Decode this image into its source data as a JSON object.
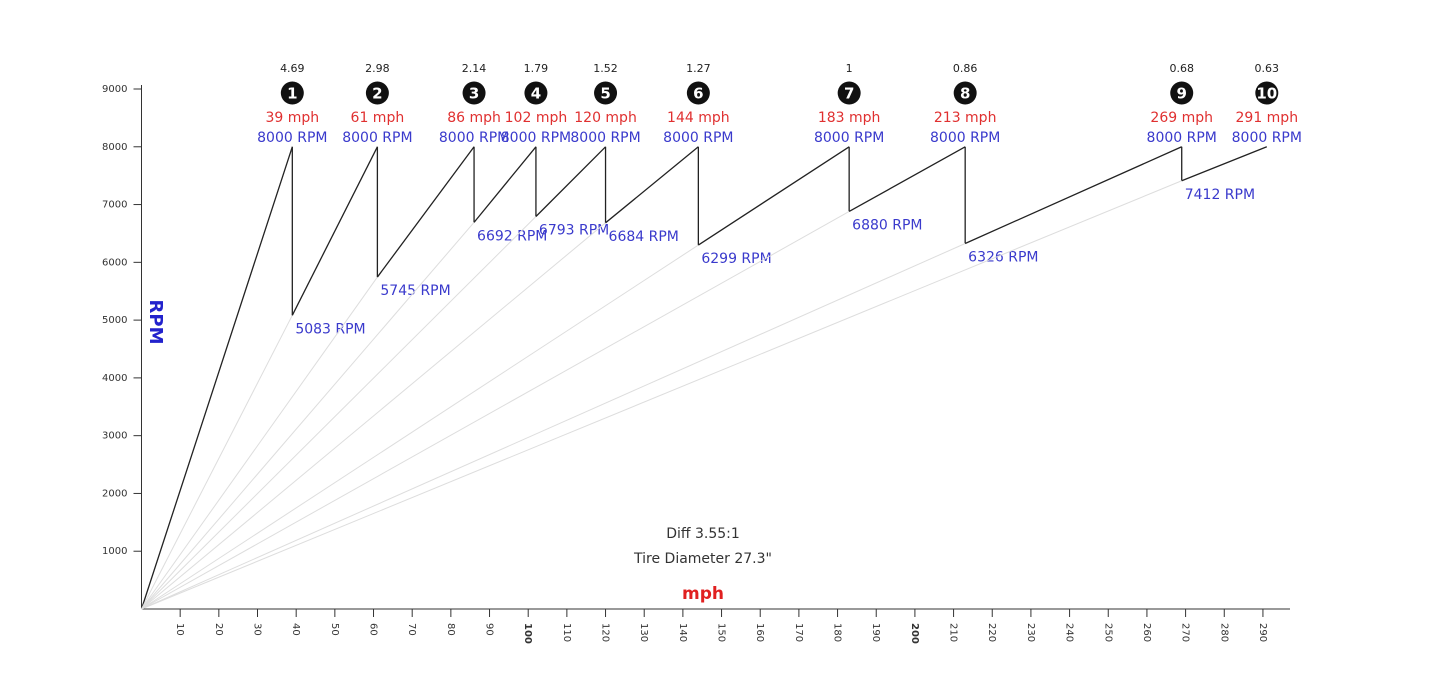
{
  "chart_data": {
    "type": "gearing",
    "y_label": "RPM",
    "x_label": "mph",
    "xlim": [
      0,
      297
    ],
    "ylim": [
      0,
      9000
    ],
    "xticks": [
      10,
      20,
      30,
      40,
      50,
      60,
      70,
      80,
      90,
      100,
      110,
      120,
      130,
      140,
      150,
      160,
      170,
      180,
      190,
      200,
      210,
      220,
      230,
      240,
      250,
      260,
      270,
      280,
      290
    ],
    "yticks": [
      1000,
      2000,
      3000,
      4000,
      5000,
      6000,
      7000,
      8000,
      9000
    ],
    "annotations": [
      "Diff 3.55:1",
      "Tire Diameter 27.3\""
    ],
    "line_color": "#222222",
    "guide_color": "#dddddd",
    "mph_color": "#e03030",
    "rpm_color": "#3a3acc",
    "gears": [
      {
        "gear": "1",
        "ratio": 4.69,
        "shift_mph": 39,
        "shift_mph_label": "39 mph",
        "shift_rpm": 8000,
        "shift_rpm_label": "8000 RPM",
        "drop_rpm": 5083,
        "drop_rpm_label": "5083 RPM"
      },
      {
        "gear": "2",
        "ratio": 2.98,
        "shift_mph": 61,
        "shift_mph_label": "61 mph",
        "shift_rpm": 8000,
        "shift_rpm_label": "8000 RPM",
        "drop_rpm": 5745,
        "drop_rpm_label": "5745 RPM"
      },
      {
        "gear": "3",
        "ratio": 2.14,
        "shift_mph": 86,
        "shift_mph_label": "86 mph",
        "shift_rpm": 8000,
        "shift_rpm_label": "8000 RPM",
        "drop_rpm": 6692,
        "drop_rpm_label": "6692 RPM"
      },
      {
        "gear": "4",
        "ratio": 1.79,
        "shift_mph": 102,
        "shift_mph_label": "102 mph",
        "shift_rpm": 8000,
        "shift_rpm_label": "8000 RPM",
        "drop_rpm": 6793,
        "drop_rpm_label": "6793 RPM"
      },
      {
        "gear": "5",
        "ratio": 1.52,
        "shift_mph": 120,
        "shift_mph_label": "120 mph",
        "shift_rpm": 8000,
        "shift_rpm_label": "8000 RPM",
        "drop_rpm": 6684,
        "drop_rpm_label": "6684 RPM"
      },
      {
        "gear": "6",
        "ratio": 1.27,
        "shift_mph": 144,
        "shift_mph_label": "144 mph",
        "shift_rpm": 8000,
        "shift_rpm_label": "8000 RPM",
        "drop_rpm": 6299,
        "drop_rpm_label": "6299 RPM"
      },
      {
        "gear": "7",
        "ratio": 1,
        "shift_mph": 183,
        "shift_mph_label": "183 mph",
        "shift_rpm": 8000,
        "shift_rpm_label": "8000 RPM",
        "drop_rpm": 6880,
        "drop_rpm_label": "6880 RPM"
      },
      {
        "gear": "8",
        "ratio": 0.86,
        "shift_mph": 213,
        "shift_mph_label": "213 mph",
        "shift_rpm": 8000,
        "shift_rpm_label": "8000 RPM",
        "drop_rpm": 6326,
        "drop_rpm_label": "6326 RPM"
      },
      {
        "gear": "9",
        "ratio": 0.68,
        "shift_mph": 269,
        "shift_mph_label": "269 mph",
        "shift_rpm": 8000,
        "shift_rpm_label": "8000 RPM",
        "drop_rpm": 7412,
        "drop_rpm_label": "7412 RPM"
      },
      {
        "gear": "10",
        "ratio": 0.63,
        "shift_mph": 291,
        "shift_mph_label": "291 mph",
        "shift_rpm": 8000,
        "shift_rpm_label": "8000 RPM"
      }
    ]
  }
}
